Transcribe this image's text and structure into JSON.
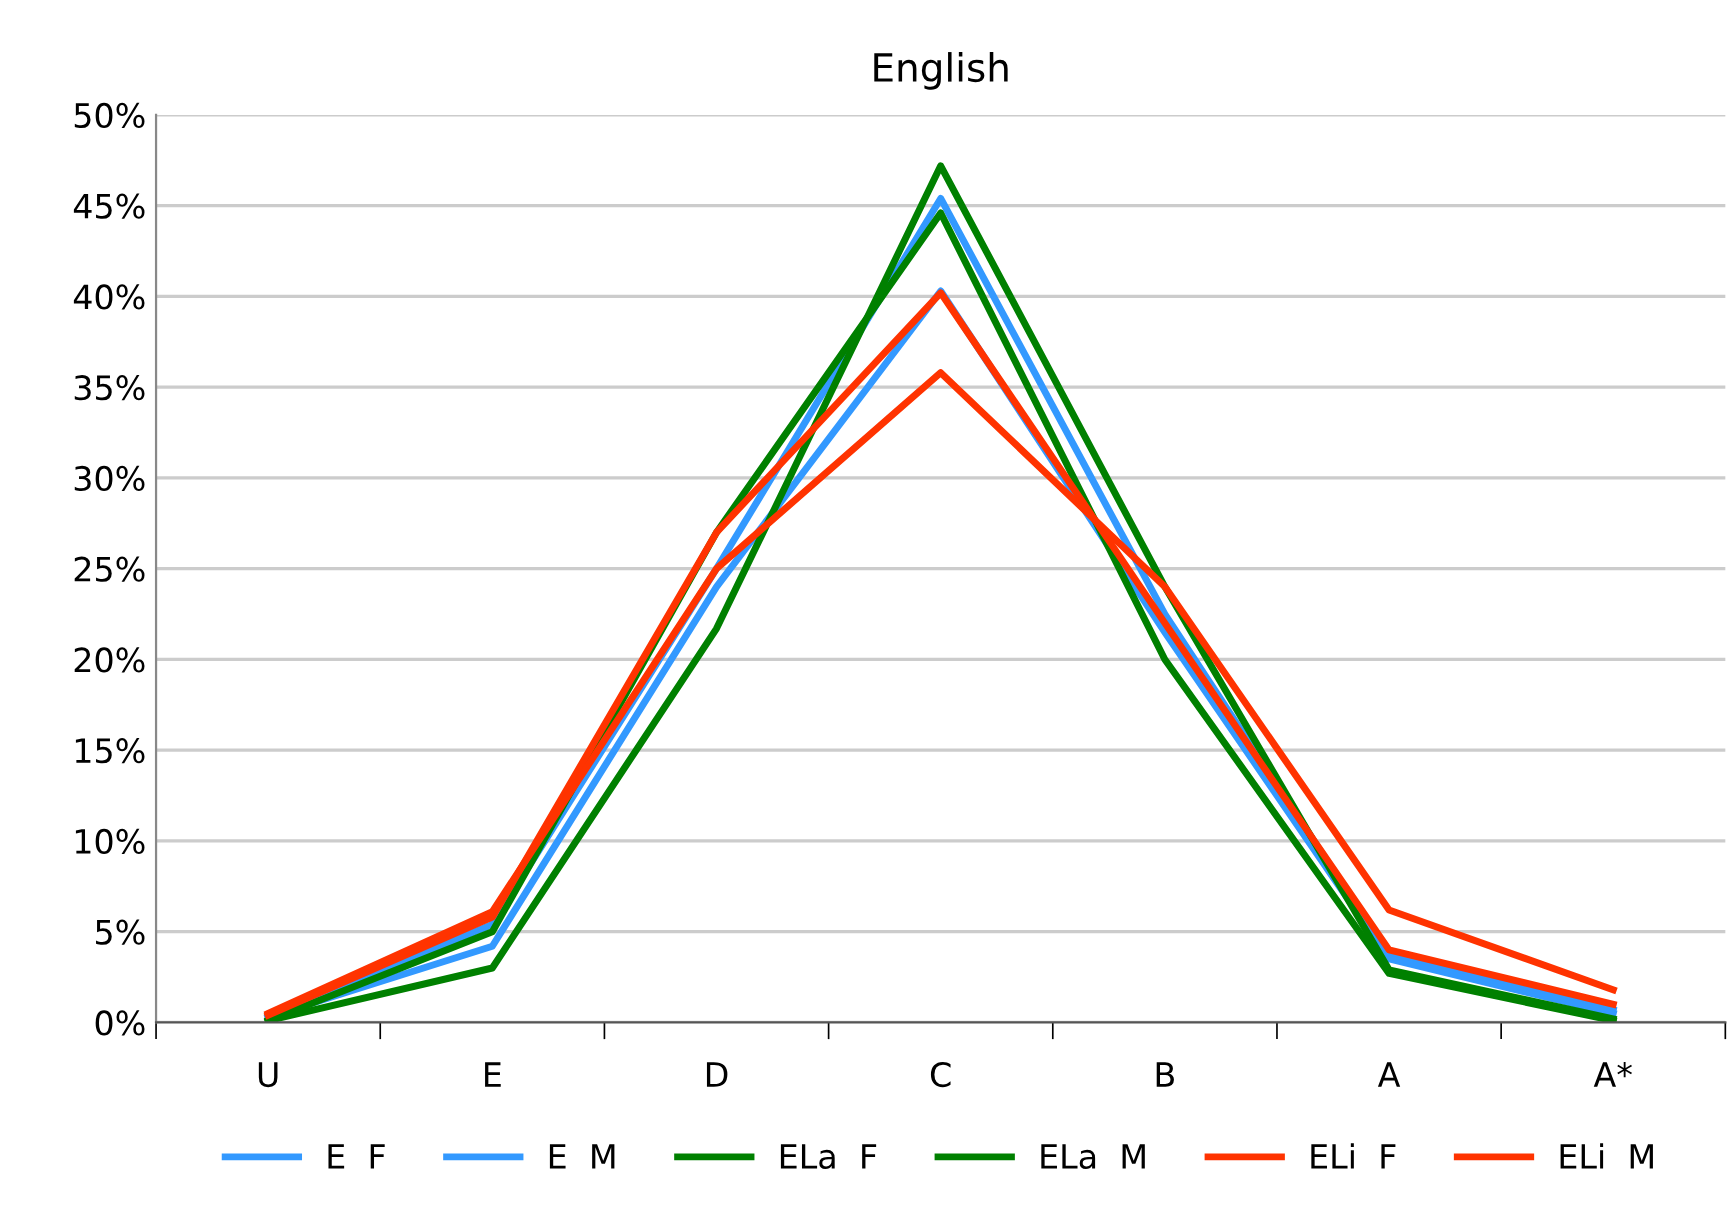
{
  "chart_data": {
    "type": "line",
    "title": "English",
    "categories": [
      "U",
      "E",
      "D",
      "C",
      "B",
      "A",
      "A*"
    ],
    "series": [
      {
        "name": "E  F",
        "color": "#3399ff",
        "values": [
          0.3,
          5.4,
          25,
          45.4,
          22.5,
          3.7,
          0.7
        ]
      },
      {
        "name": "E  M",
        "color": "#3399ff",
        "values": [
          0.3,
          4.2,
          24,
          40.3,
          21.5,
          3.5,
          0.5
        ]
      },
      {
        "name": "ELa  F",
        "color": "#008000",
        "values": [
          0.1,
          3.0,
          21.7,
          47.2,
          24,
          2.9,
          0.2
        ]
      },
      {
        "name": "ELa  M",
        "color": "#008000",
        "values": [
          0.1,
          5.0,
          27,
          44.6,
          20,
          2.7,
          0.1
        ]
      },
      {
        "name": "ELi  F",
        "color": "#ff3300",
        "values": [
          0.4,
          5.8,
          27,
          40.2,
          22,
          4.0,
          1.0
        ]
      },
      {
        "name": "ELi  M",
        "color": "#ff3300",
        "values": [
          0.5,
          6.1,
          25,
          35.8,
          24,
          6.2,
          1.8
        ]
      }
    ],
    "ylim": [
      0,
      50
    ],
    "yticks": [
      {
        "value": 0,
        "label": "0%"
      },
      {
        "value": 5,
        "label": "5%"
      },
      {
        "value": 10,
        "label": "10%"
      },
      {
        "value": 15,
        "label": "15%"
      },
      {
        "value": 20,
        "label": "20%"
      },
      {
        "value": 25,
        "label": "25%"
      },
      {
        "value": 30,
        "label": "30%"
      },
      {
        "value": 35,
        "label": "35%"
      },
      {
        "value": 40,
        "label": "40%"
      },
      {
        "value": 45,
        "label": "45%"
      },
      {
        "value": 50,
        "label": "50%"
      }
    ],
    "grid": "y",
    "legend": "bottom",
    "marker": "none",
    "line_style": "solid"
  }
}
